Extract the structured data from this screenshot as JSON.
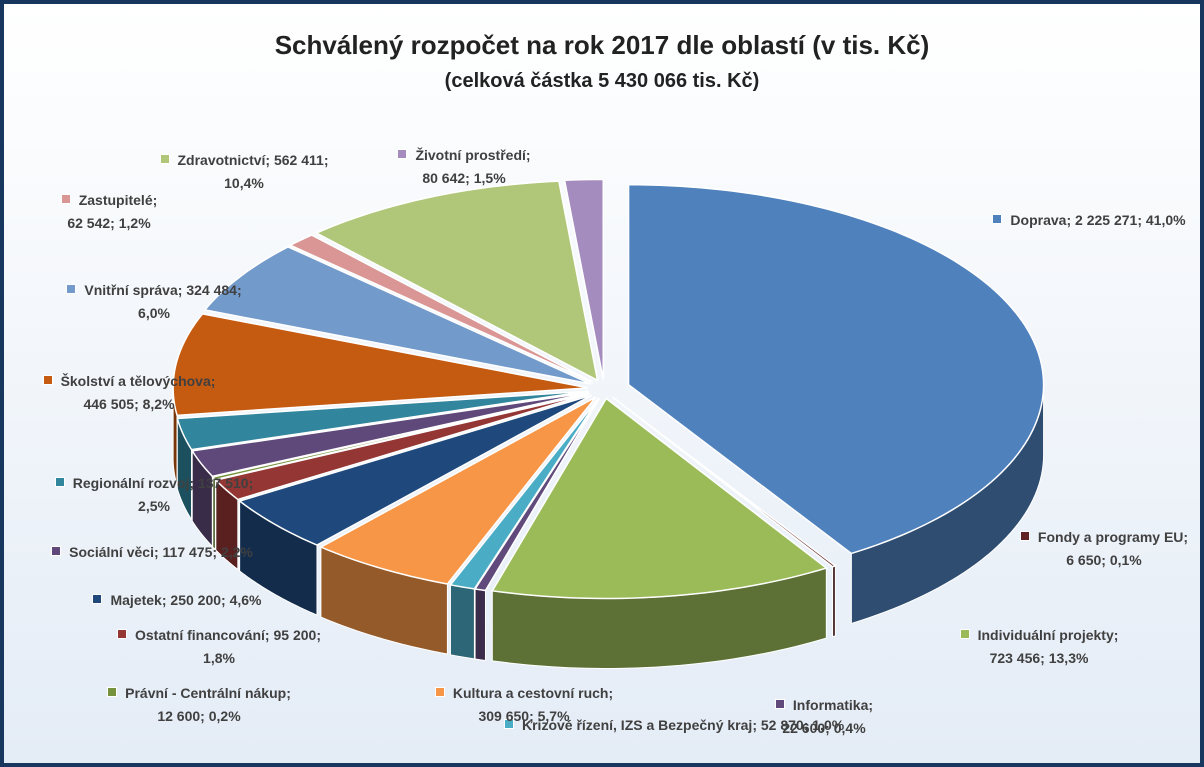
{
  "chart_data": {
    "type": "pie3d",
    "title": "Schválený rozpočet na rok 2017 dle oblastí (v tis. Kč)",
    "subtitle": "(celková částka 5 430 066 tis. Kč)",
    "separator": "; ",
    "categories": [
      "Doprava",
      "Fondy a programy EU",
      "Individuální projekty",
      "Informatika",
      "Krizové řízení, IZS a Bezpečný kraj",
      "Kultura a cestovní ruch",
      "Majetek",
      "Ostatní financování",
      "Právní - Centrální nákup",
      "Sociální věci",
      "Regionální rozvoj",
      "Školství a tělovýchova",
      "Vnitřní správa",
      "Zastupitelé",
      "Zdravotnictví",
      "Životní prostředí"
    ],
    "values": [
      2225271,
      6650,
      723456,
      22600,
      52870,
      309650,
      250200,
      95200,
      12600,
      117475,
      137510,
      446505,
      324484,
      62542,
      562411,
      80642
    ],
    "value_labels": [
      "2 225 271",
      "6 650",
      "723 456",
      "22 600",
      "52 870",
      "309 650",
      "250 200",
      "95 200",
      "12 600",
      "117 475",
      "137 510",
      "446 505",
      "324 484",
      "62 542",
      "562 411",
      "80 642"
    ],
    "percent_labels": [
      "41,0%",
      "0,1%",
      "13,3%",
      "0,4%",
      "1,0%",
      "5,7%",
      "4,6%",
      "1,8%",
      "0,2%",
      "2,2%",
      "2,5%",
      "8,2%",
      "6,0%",
      "1,2%",
      "10,4%",
      "1,5%"
    ],
    "colors": [
      "#4f81bd",
      "#632523",
      "#9bbb59",
      "#604a7b",
      "#4bacc6",
      "#f79646",
      "#1f497d",
      "#943634",
      "#76923c",
      "#5f497a",
      "#31859c",
      "#c55a11",
      "#729aca",
      "#d99694",
      "#b0c77a",
      "#a48cbe"
    ]
  }
}
